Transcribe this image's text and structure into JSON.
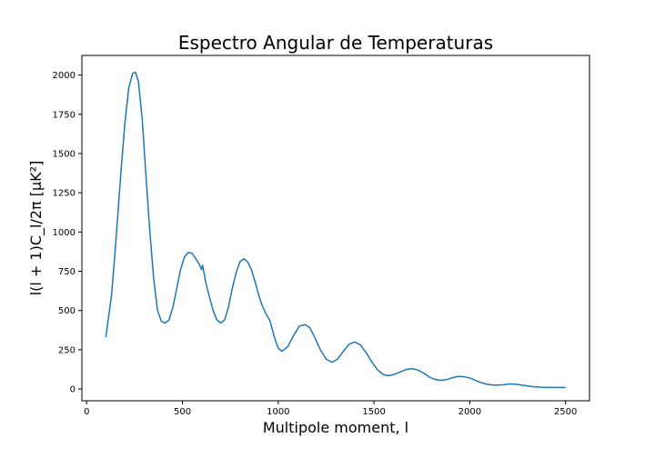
{
  "chart_data": {
    "type": "line",
    "title": "Espectro Angular de Temperaturas",
    "xlabel": "Multipole moment, l",
    "ylabel": "l(l + 1)C_l/2π [μK²]",
    "xlim": [
      -25,
      2625
    ],
    "ylim": [
      -75,
      2125
    ],
    "xticks": [
      0,
      500,
      1000,
      1500,
      2000,
      2500
    ],
    "yticks": [
      0,
      250,
      500,
      750,
      1000,
      1250,
      1500,
      1750,
      2000
    ],
    "grid": false,
    "series": [
      {
        "color": "#1f77b4",
        "x": [
          100,
          130,
          150,
          180,
          200,
          220,
          240,
          255,
          270,
          290,
          310,
          330,
          350,
          370,
          390,
          410,
          430,
          450,
          470,
          490,
          510,
          530,
          550,
          570,
          590,
          600,
          605,
          620,
          640,
          660,
          680,
          700,
          720,
          740,
          760,
          780,
          800,
          820,
          840,
          860,
          880,
          900,
          920,
          940,
          955,
          960,
          980,
          1000,
          1020,
          1050,
          1080,
          1110,
          1140,
          1165,
          1190,
          1220,
          1250,
          1280,
          1310,
          1340,
          1370,
          1400,
          1430,
          1460,
          1490,
          1520,
          1550,
          1580,
          1610,
          1640,
          1670,
          1700,
          1730,
          1760,
          1790,
          1820,
          1850,
          1880,
          1910,
          1940,
          1970,
          2000,
          2030,
          2060,
          2090,
          2120,
          2150,
          2180,
          2210,
          2240,
          2270,
          2300,
          2330,
          2360,
          2390,
          2420,
          2450,
          2480,
          2500
        ],
        "y": [
          330,
          600,
          900,
          1400,
          1700,
          1920,
          2010,
          2018,
          1960,
          1720,
          1350,
          1000,
          700,
          500,
          430,
          420,
          440,
          520,
          640,
          760,
          840,
          870,
          865,
          830,
          790,
          760,
          790,
          690,
          590,
          500,
          440,
          420,
          440,
          520,
          640,
          740,
          810,
          830,
          810,
          760,
          680,
          590,
          520,
          470,
          440,
          420,
          330,
          260,
          240,
          270,
          340,
          400,
          410,
          390,
          330,
          250,
          190,
          170,
          190,
          240,
          285,
          300,
          280,
          230,
          170,
          120,
          90,
          85,
          95,
          110,
          125,
          130,
          120,
          100,
          75,
          60,
          55,
          60,
          72,
          80,
          78,
          70,
          55,
          40,
          30,
          25,
          25,
          28,
          32,
          30,
          25,
          20,
          15,
          12,
          10,
          10,
          10,
          10,
          10
        ]
      }
    ]
  }
}
